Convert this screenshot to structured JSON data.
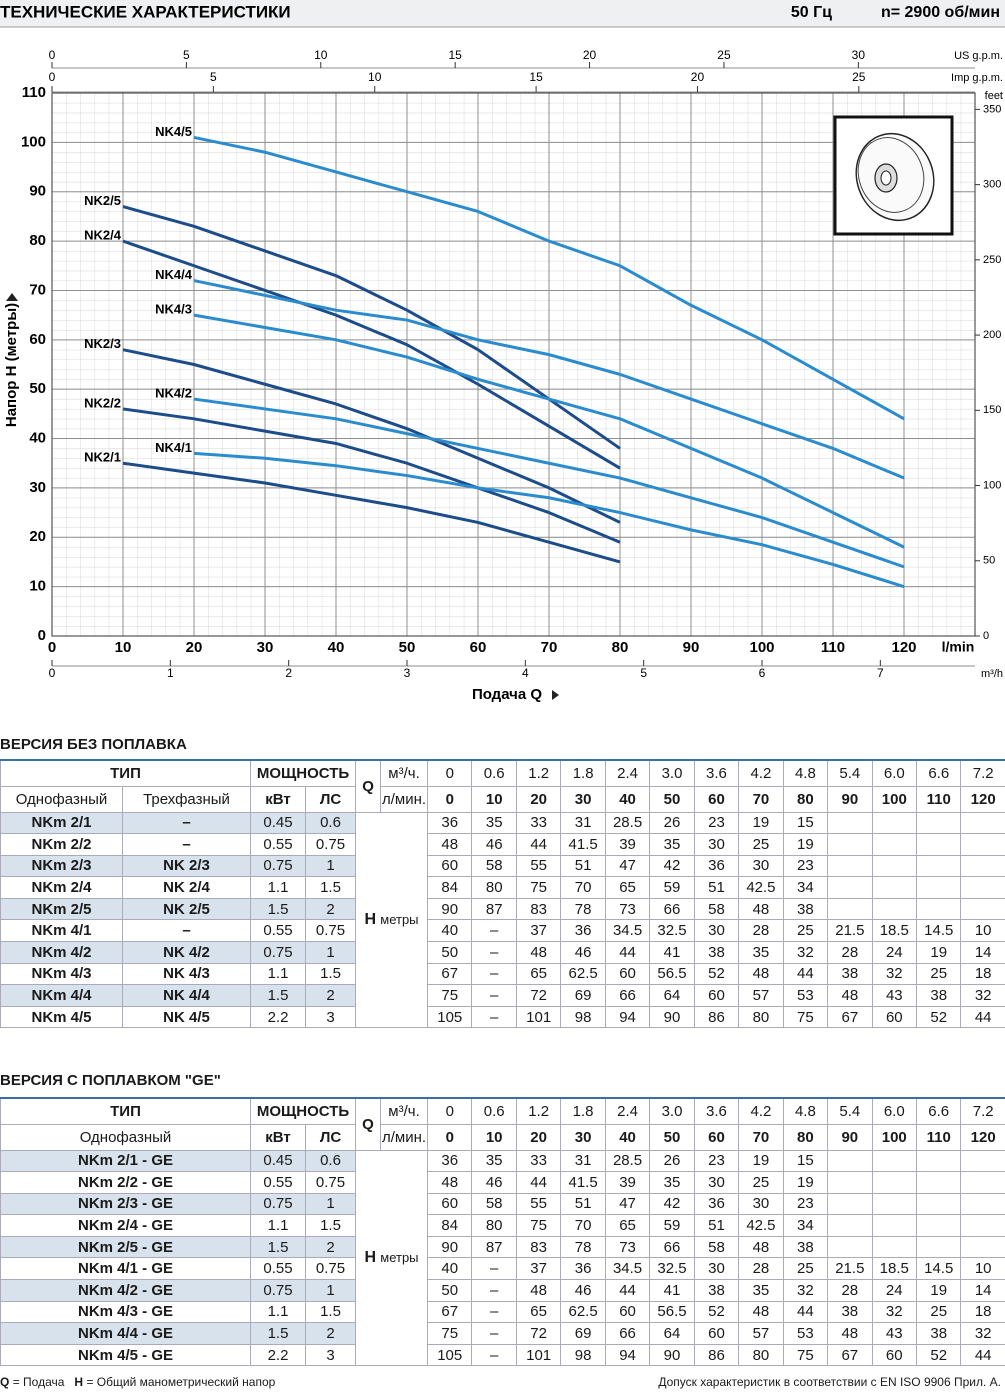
{
  "header": {
    "title": "ТЕХНИЧЕСКИЕ ХАРАКТЕРИСТИКИ",
    "frequency": "50 Гц",
    "speed": "n= 2900  об/мин"
  },
  "chart_data": {
    "type": "line",
    "xlabel": "Подача Q",
    "xunit": "l/min",
    "ylabel": "Напор H  (метры)",
    "y2label": "feet",
    "x": [
      0,
      10,
      20,
      30,
      40,
      50,
      60,
      70,
      80,
      90,
      100,
      110,
      120
    ],
    "xlim": [
      0,
      130
    ],
    "xticks": [
      0,
      10,
      20,
      30,
      40,
      50,
      60,
      70,
      80,
      90,
      100,
      110,
      120
    ],
    "ylim": [
      0,
      110
    ],
    "yticks": [
      0,
      10,
      20,
      30,
      40,
      50,
      60,
      70,
      80,
      90,
      100,
      110
    ],
    "y2lim": [
      0,
      360.9
    ],
    "y2ticks": [
      0,
      50,
      100,
      150,
      200,
      250,
      300,
      350
    ],
    "grid": true,
    "x_secondary": [
      {
        "label": "US g.p.m.",
        "position": "top",
        "lim": [
          0,
          34.34
        ],
        "ticks": [
          0,
          5,
          10,
          15,
          20,
          25,
          30
        ]
      },
      {
        "label": "Imp g.p.m.",
        "position": "top",
        "lim": [
          0,
          28.6
        ],
        "ticks": [
          0,
          5,
          10,
          15,
          20,
          25
        ]
      },
      {
        "label": "m³/h",
        "position": "bottom",
        "lim": [
          0,
          7.8
        ],
        "ticks": [
          0,
          1,
          2,
          3,
          4,
          5,
          6,
          7
        ]
      }
    ],
    "series": [
      {
        "name": "NK2/1",
        "color": "#1c4c8a",
        "values": [
          null,
          35,
          33,
          31,
          28.5,
          26,
          23,
          19,
          15,
          null,
          null,
          null,
          null
        ]
      },
      {
        "name": "NK2/2",
        "color": "#1c4c8a",
        "values": [
          null,
          46,
          44,
          41.5,
          39,
          35,
          30,
          25,
          19,
          null,
          null,
          null,
          null
        ]
      },
      {
        "name": "NK2/3",
        "color": "#1c4c8a",
        "values": [
          null,
          58,
          55,
          51,
          47,
          42,
          36,
          30,
          23,
          null,
          null,
          null,
          null
        ]
      },
      {
        "name": "NK2/4",
        "color": "#1c4c8a",
        "values": [
          null,
          80,
          75,
          70,
          65,
          59,
          51,
          42.5,
          34,
          null,
          null,
          null,
          null
        ]
      },
      {
        "name": "NK2/5",
        "color": "#1c4c8a",
        "values": [
          null,
          87,
          83,
          78,
          73,
          66,
          58,
          48,
          38,
          null,
          null,
          null,
          null
        ]
      },
      {
        "name": "NK4/1",
        "color": "#2a8cce",
        "values": [
          null,
          null,
          37,
          36,
          34.5,
          32.5,
          30,
          28,
          25,
          21.5,
          18.5,
          14.5,
          10
        ]
      },
      {
        "name": "NK4/2",
        "color": "#2a8cce",
        "values": [
          null,
          null,
          48,
          46,
          44,
          41,
          38,
          35,
          32,
          28,
          24,
          19,
          14
        ]
      },
      {
        "name": "NK4/3",
        "color": "#2a8cce",
        "values": [
          null,
          null,
          65,
          62.5,
          60,
          56.5,
          52,
          48,
          44,
          38,
          32,
          25,
          18
        ]
      },
      {
        "name": "NK4/4",
        "color": "#2a8cce",
        "values": [
          null,
          null,
          72,
          69,
          66,
          64,
          60,
          57,
          53,
          48,
          43,
          38,
          32
        ]
      },
      {
        "name": "NK4/5",
        "color": "#2a8cce",
        "values": [
          null,
          null,
          101,
          98,
          94,
          90,
          86,
          80,
          75,
          67,
          60,
          52,
          44
        ]
      }
    ]
  },
  "table1": {
    "title": "ВЕРСИЯ БЕЗ ПОПЛАВКА",
    "header": {
      "type": "ТИП",
      "power": "МОЩНОСТЬ",
      "q_symbol": "Q",
      "single_phase": "Однофазный",
      "three_phase": "Трехфазный",
      "kw": "кВт",
      "hp": "ЛС",
      "q_unit_m3h": "м³/ч.",
      "q_unit_lmin": "л/мин.",
      "q_m3h": [
        0,
        0.6,
        1.2,
        1.8,
        2.4,
        "3.0",
        3.6,
        4.2,
        4.8,
        5.4,
        "6.0",
        6.6,
        7.2
      ],
      "q_lmin": [
        0,
        10,
        20,
        30,
        40,
        50,
        60,
        70,
        80,
        90,
        100,
        110,
        120
      ]
    },
    "h_symbol": "H",
    "h_unit": "метры",
    "rows": [
      {
        "single": "NKm 2/1",
        "three": "–",
        "kw": 0.45,
        "hp": 0.6,
        "h": [
          36,
          35,
          33,
          31,
          28.5,
          26,
          23,
          19,
          15,
          null,
          null,
          null,
          null
        ]
      },
      {
        "single": "NKm 2/2",
        "three": "–",
        "kw": 0.55,
        "hp": 0.75,
        "h": [
          48,
          46,
          44,
          41.5,
          39,
          35,
          30,
          25,
          19,
          null,
          null,
          null,
          null
        ]
      },
      {
        "single": "NKm 2/3",
        "three": "NK 2/3",
        "kw": 0.75,
        "hp": 1,
        "h": [
          60,
          58,
          55,
          51,
          47,
          42,
          36,
          30,
          23,
          null,
          null,
          null,
          null
        ]
      },
      {
        "single": "NKm 2/4",
        "three": "NK 2/4",
        "kw": 1.1,
        "hp": 1.5,
        "h": [
          84,
          80,
          75,
          70,
          65,
          59,
          51,
          42.5,
          34,
          null,
          null,
          null,
          null
        ]
      },
      {
        "single": "NKm 2/5",
        "three": "NK 2/5",
        "kw": 1.5,
        "hp": 2,
        "h": [
          90,
          87,
          83,
          78,
          73,
          66,
          58,
          48,
          38,
          null,
          null,
          null,
          null
        ]
      },
      {
        "single": "NKm 4/1",
        "three": "–",
        "kw": 0.55,
        "hp": 0.75,
        "h": [
          40,
          "–",
          37,
          36,
          34.5,
          32.5,
          30,
          28,
          25,
          21.5,
          18.5,
          14.5,
          10
        ]
      },
      {
        "single": "NKm 4/2",
        "three": "NK 4/2",
        "kw": 0.75,
        "hp": 1,
        "h": [
          50,
          "–",
          48,
          46,
          44,
          41,
          38,
          35,
          32,
          28,
          24,
          19,
          14
        ]
      },
      {
        "single": "NKm 4/3",
        "three": "NK 4/3",
        "kw": 1.1,
        "hp": 1.5,
        "h": [
          67,
          "–",
          65,
          62.5,
          60,
          56.5,
          52,
          48,
          44,
          38,
          32,
          25,
          18
        ]
      },
      {
        "single": "NKm 4/4",
        "three": "NK 4/4",
        "kw": 1.5,
        "hp": 2,
        "h": [
          75,
          "–",
          72,
          69,
          66,
          64,
          60,
          57,
          53,
          48,
          43,
          38,
          32
        ]
      },
      {
        "single": "NKm 4/5",
        "three": "NK 4/5",
        "kw": 2.2,
        "hp": 3,
        "h": [
          105,
          "–",
          101,
          98,
          94,
          90,
          86,
          80,
          75,
          67,
          60,
          52,
          44
        ]
      }
    ]
  },
  "table2": {
    "title": "ВЕРСИЯ С ПОПЛАВКОМ \"GE\"",
    "header": {
      "type": "ТИП",
      "power": "МОЩНОСТЬ",
      "q_symbol": "Q",
      "single_phase": "Однофазный",
      "kw": "кВт",
      "hp": "ЛС",
      "q_unit_m3h": "м³/ч.",
      "q_unit_lmin": "л/мин.",
      "q_m3h": [
        0,
        0.6,
        1.2,
        1.8,
        2.4,
        "3.0",
        3.6,
        4.2,
        4.8,
        5.4,
        "6.0",
        6.6,
        7.2
      ],
      "q_lmin": [
        0,
        10,
        20,
        30,
        40,
        50,
        60,
        70,
        80,
        90,
        100,
        110,
        120
      ]
    },
    "h_symbol": "H",
    "h_unit": "метры",
    "rows": [
      {
        "single": "NKm 2/1 - GE",
        "kw": 0.45,
        "hp": 0.6,
        "h": [
          36,
          35,
          33,
          31,
          28.5,
          26,
          23,
          19,
          15,
          null,
          null,
          null,
          null
        ]
      },
      {
        "single": "NKm 2/2 - GE",
        "kw": 0.55,
        "hp": 0.75,
        "h": [
          48,
          46,
          44,
          41.5,
          39,
          35,
          30,
          25,
          19,
          null,
          null,
          null,
          null
        ]
      },
      {
        "single": "NKm 2/3 - GE",
        "kw": 0.75,
        "hp": 1,
        "h": [
          60,
          58,
          55,
          51,
          47,
          42,
          36,
          30,
          23,
          null,
          null,
          null,
          null
        ]
      },
      {
        "single": "NKm 2/4 - GE",
        "kw": 1.1,
        "hp": 1.5,
        "h": [
          84,
          80,
          75,
          70,
          65,
          59,
          51,
          42.5,
          34,
          null,
          null,
          null,
          null
        ]
      },
      {
        "single": "NKm 2/5 - GE",
        "kw": 1.5,
        "hp": 2,
        "h": [
          90,
          87,
          83,
          78,
          73,
          66,
          58,
          48,
          38,
          null,
          null,
          null,
          null
        ]
      },
      {
        "single": "NKm 4/1 - GE",
        "kw": 0.55,
        "hp": 0.75,
        "h": [
          40,
          "–",
          37,
          36,
          34.5,
          32.5,
          30,
          28,
          25,
          21.5,
          18.5,
          14.5,
          10
        ]
      },
      {
        "single": "NKm 4/2 - GE",
        "kw": 0.75,
        "hp": 1,
        "h": [
          50,
          "–",
          48,
          46,
          44,
          41,
          38,
          35,
          32,
          28,
          24,
          19,
          14
        ]
      },
      {
        "single": "NKm 4/3 - GE",
        "kw": 1.1,
        "hp": 1.5,
        "h": [
          67,
          "–",
          65,
          62.5,
          60,
          56.5,
          52,
          48,
          44,
          38,
          32,
          25,
          18
        ]
      },
      {
        "single": "NKm 4/4 - GE",
        "kw": 1.5,
        "hp": 2,
        "h": [
          75,
          "–",
          72,
          69,
          66,
          64,
          60,
          57,
          53,
          48,
          43,
          38,
          32
        ]
      },
      {
        "single": "NKm 4/5 - GE",
        "kw": 2.2,
        "hp": 3,
        "h": [
          105,
          "–",
          101,
          98,
          94,
          90,
          86,
          80,
          75,
          67,
          60,
          52,
          44
        ]
      }
    ]
  },
  "footer": {
    "legend": [
      {
        "symbol": "Q",
        "text": "= Подача"
      },
      {
        "symbol": "H",
        "text": "= Общий манометрический напор"
      }
    ],
    "note": "Допуск характеристик в соответствии с EN ISO 9906 Прил. A."
  }
}
